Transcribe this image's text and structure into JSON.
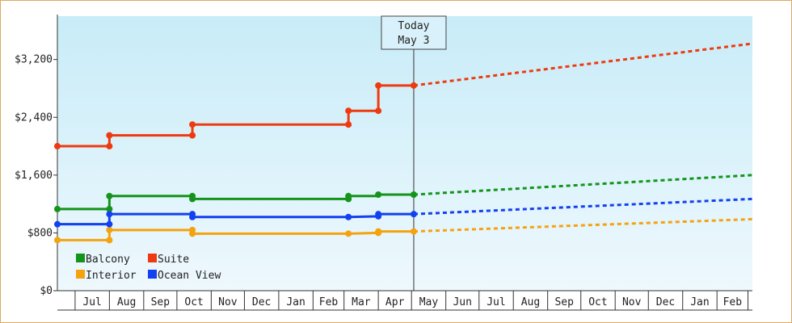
{
  "chart_data": {
    "type": "line",
    "x_unit": "month",
    "ylim": [
      0,
      3800
    ],
    "y_ticks": [
      0,
      800,
      1600,
      2400,
      3200
    ],
    "y_tick_labels": [
      "$0",
      "$800",
      "$1,600",
      "$2,400",
      "$3,200"
    ],
    "x_ticks": [
      {
        "month": "2024-07",
        "label": "Jul"
      },
      {
        "month": "2024-08",
        "label": "Aug"
      },
      {
        "month": "2024-09",
        "label": "Sep"
      },
      {
        "month": "2024-10",
        "label": "Oct"
      },
      {
        "month": "2024-11",
        "label": "Nov"
      },
      {
        "month": "2024-12",
        "label": "Dec"
      },
      {
        "month": "2025-01",
        "label": "Jan"
      },
      {
        "month": "2025-02",
        "label": "Feb"
      },
      {
        "month": "2025-03",
        "label": "Mar"
      },
      {
        "month": "2025-04",
        "label": "Apr"
      },
      {
        "month": "2025-05",
        "label": "May"
      },
      {
        "month": "2025-06",
        "label": "Jun"
      },
      {
        "month": "2025-07",
        "label": "Jul"
      },
      {
        "month": "2025-08",
        "label": "Aug"
      },
      {
        "month": "2025-09",
        "label": "Sep"
      },
      {
        "month": "2025-10",
        "label": "Oct"
      },
      {
        "month": "2025-11",
        "label": "Nov"
      },
      {
        "month": "2025-12",
        "label": "Dec"
      },
      {
        "month": "2026-01",
        "label": "Jan"
      },
      {
        "month": "2026-02",
        "label": "Feb"
      }
    ],
    "x_range": [
      "2024-06-15",
      "2026-03-05"
    ],
    "today": {
      "date": "2025-05-03",
      "label_line1": "Today",
      "label_line2": "May 3"
    },
    "legend": {
      "placement": "bottom-left",
      "columns": 2
    },
    "grid": false,
    "background_gradient": [
      "#c8ecf8",
      "#eef8fd"
    ],
    "series": [
      {
        "name": "Balcony",
        "color": "#14941a",
        "history": [
          [
            "2024-06-15",
            1130
          ],
          [
            "2024-08-01",
            1130
          ],
          [
            "2024-08-01",
            1310
          ],
          [
            "2024-10-15",
            1310
          ],
          [
            "2024-10-15",
            1270
          ],
          [
            "2025-03-05",
            1270
          ],
          [
            "2025-03-05",
            1310
          ],
          [
            "2025-04-01",
            1310
          ],
          [
            "2025-04-01",
            1330
          ],
          [
            "2025-05-03",
            1330
          ]
        ],
        "points": [
          [
            "2024-06-15",
            1130
          ],
          [
            "2024-08-01",
            1130
          ],
          [
            "2024-08-01",
            1310
          ],
          [
            "2024-10-15",
            1310
          ],
          [
            "2024-10-15",
            1270
          ],
          [
            "2025-03-05",
            1270
          ],
          [
            "2025-03-05",
            1310
          ],
          [
            "2025-04-01",
            1330
          ],
          [
            "2025-05-03",
            1330
          ]
        ],
        "forecast": [
          [
            "2025-05-03",
            1330
          ],
          [
            "2026-03-05",
            1600
          ]
        ]
      },
      {
        "name": "Suite",
        "color": "#ee3a10",
        "history": [
          [
            "2024-06-15",
            2000
          ],
          [
            "2024-08-01",
            2000
          ],
          [
            "2024-08-01",
            2150
          ],
          [
            "2024-10-15",
            2150
          ],
          [
            "2024-10-15",
            2300
          ],
          [
            "2025-03-05",
            2300
          ],
          [
            "2025-03-05",
            2490
          ],
          [
            "2025-04-01",
            2490
          ],
          [
            "2025-04-01",
            2840
          ],
          [
            "2025-05-03",
            2840
          ]
        ],
        "points": [
          [
            "2024-06-15",
            2000
          ],
          [
            "2024-08-01",
            2000
          ],
          [
            "2024-08-01",
            2150
          ],
          [
            "2024-10-15",
            2150
          ],
          [
            "2024-10-15",
            2300
          ],
          [
            "2025-03-05",
            2300
          ],
          [
            "2025-03-05",
            2490
          ],
          [
            "2025-04-01",
            2490
          ],
          [
            "2025-04-01",
            2840
          ],
          [
            "2025-05-03",
            2840
          ]
        ],
        "forecast": [
          [
            "2025-05-03",
            2840
          ],
          [
            "2026-03-05",
            3420
          ]
        ]
      },
      {
        "name": "Interior",
        "color": "#f5a20f",
        "history": [
          [
            "2024-06-15",
            700
          ],
          [
            "2024-08-01",
            700
          ],
          [
            "2024-08-01",
            840
          ],
          [
            "2024-10-15",
            840
          ],
          [
            "2024-10-15",
            790
          ],
          [
            "2025-03-05",
            790
          ],
          [
            "2025-04-01",
            800
          ],
          [
            "2025-04-01",
            820
          ],
          [
            "2025-05-03",
            820
          ]
        ],
        "points": [
          [
            "2024-06-15",
            700
          ],
          [
            "2024-08-01",
            700
          ],
          [
            "2024-08-01",
            840
          ],
          [
            "2024-10-15",
            840
          ],
          [
            "2024-10-15",
            790
          ],
          [
            "2025-03-05",
            790
          ],
          [
            "2025-04-01",
            800
          ],
          [
            "2025-04-01",
            820
          ],
          [
            "2025-05-03",
            820
          ]
        ],
        "forecast": [
          [
            "2025-05-03",
            820
          ],
          [
            "2026-03-05",
            990
          ]
        ]
      },
      {
        "name": "Ocean View",
        "color": "#1340f0",
        "history": [
          [
            "2024-06-15",
            920
          ],
          [
            "2024-08-01",
            920
          ],
          [
            "2024-08-01",
            1060
          ],
          [
            "2024-10-15",
            1060
          ],
          [
            "2024-10-15",
            1020
          ],
          [
            "2025-03-05",
            1020
          ],
          [
            "2025-04-01",
            1030
          ],
          [
            "2025-04-01",
            1060
          ],
          [
            "2025-05-03",
            1060
          ]
        ],
        "points": [
          [
            "2024-06-15",
            920
          ],
          [
            "2024-08-01",
            920
          ],
          [
            "2024-08-01",
            1060
          ],
          [
            "2024-10-15",
            1060
          ],
          [
            "2024-10-15",
            1020
          ],
          [
            "2025-03-05",
            1020
          ],
          [
            "2025-04-01",
            1030
          ],
          [
            "2025-04-01",
            1060
          ],
          [
            "2025-05-03",
            1060
          ]
        ],
        "forecast": [
          [
            "2025-05-03",
            1060
          ],
          [
            "2026-03-05",
            1270
          ]
        ]
      }
    ],
    "legend_order": [
      "Balcony",
      "Suite",
      "Interior",
      "Ocean View"
    ]
  }
}
